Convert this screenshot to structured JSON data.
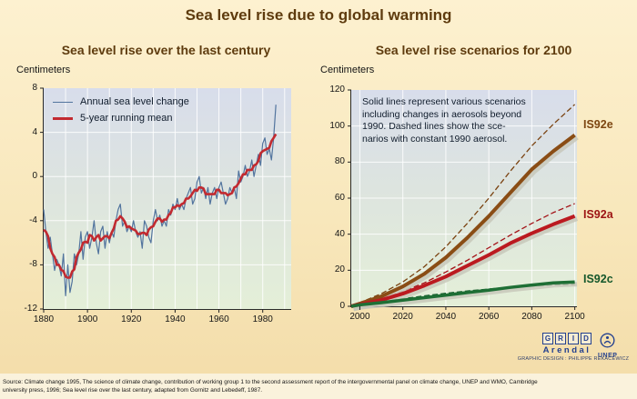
{
  "title": "Sea level rise due to global warming",
  "chart_data": [
    {
      "type": "line",
      "title": "Sea level rise over the last century",
      "unit": "Centimeters",
      "xlim": [
        1880,
        1993
      ],
      "ylim": [
        -12,
        8
      ],
      "x_ticks": [
        1880,
        1900,
        1920,
        1940,
        1960,
        1980
      ],
      "y_ticks": [
        8,
        4,
        0,
        -4,
        -8,
        -12
      ],
      "grid_x": [
        1890,
        1900,
        1910,
        1920,
        1930,
        1940,
        1950,
        1960,
        1970,
        1980,
        1990
      ],
      "grid_y": [
        4,
        0,
        -4,
        -8
      ],
      "legend_position": "top-left",
      "series": [
        {
          "name": "Annual sea level change",
          "color": "#52749E",
          "width": 1.2,
          "x_start": 1880,
          "x_step": 1,
          "values": [
            -3,
            -5,
            -6.5,
            -5.5,
            -7,
            -8.5,
            -7.5,
            -8,
            -9,
            -7,
            -10.8,
            -8,
            -10.5,
            -9.5,
            -7,
            -8,
            -7,
            -5,
            -7.5,
            -5.5,
            -5,
            -6.5,
            -5.5,
            -4,
            -6,
            -7,
            -5,
            -4.5,
            -6.5,
            -5,
            -6,
            -5,
            -5.5,
            -4,
            -3,
            -2.5,
            -4.5,
            -4,
            -5,
            -4.5,
            -5,
            -4,
            -5,
            -5.5,
            -5,
            -6.5,
            -4,
            -4.5,
            -5.5,
            -6,
            -4,
            -3,
            -4,
            -3.5,
            -4.5,
            -4,
            -4.5,
            -3,
            -3.5,
            -2.5,
            -3,
            -2,
            -3,
            -2.5,
            -3,
            -2,
            -1.5,
            -1,
            -2.5,
            -2,
            -0.5,
            0,
            -1.5,
            -1,
            -2,
            -1,
            -2.5,
            -1.5,
            -1,
            -2,
            -1,
            -0.5,
            -1.5,
            -2.5,
            -2,
            -1,
            -1.5,
            -1,
            -2,
            0.5,
            -0.5,
            0,
            1,
            0,
            0.5,
            1.5,
            0,
            1,
            2,
            1,
            3,
            3.5,
            2,
            2.5,
            1.5,
            3.5,
            6.5
          ]
        },
        {
          "name": "5-year running mean",
          "color": "#C22A30",
          "width": 2.6,
          "derived_from": "Annual sea level change",
          "derivation": "5-year centered moving average"
        }
      ]
    },
    {
      "type": "line",
      "title": "Sea level rise scenarios for 2100",
      "unit": "Centimeters",
      "note_lines": [
        "Solid lines represent various scenarios",
        "including changes in aerosols beyond",
        "1990. Dashed lines show the sce-",
        "narios with constant 1990 aerosol."
      ],
      "xlim": [
        1996,
        2101
      ],
      "ylim": [
        0,
        120
      ],
      "x_ticks": [
        2000,
        2020,
        2040,
        2060,
        2080,
        2100
      ],
      "y_ticks": [
        120,
        100,
        80,
        60,
        40,
        20,
        0
      ],
      "grid_x": [
        2000,
        2020,
        2040,
        2060,
        2080,
        2100
      ],
      "grid_y": [
        20,
        40,
        60,
        80,
        100
      ],
      "labels": [
        {
          "text": "IS92e",
          "color": "#7D4611",
          "at_cm": 100
        },
        {
          "text": "IS92a",
          "color": "#9C1313",
          "at_cm": 50
        },
        {
          "text": "IS92c",
          "color": "#14572B",
          "at_cm": 14
        }
      ],
      "series": [
        {
          "name": "IS92e constant 1990 aerosol",
          "style": "dashed",
          "color": "#7A4210",
          "width": 1.3,
          "dash": "6 3",
          "x": [
            1996,
            2000,
            2010,
            2020,
            2030,
            2040,
            2050,
            2060,
            2070,
            2080,
            2090,
            2100
          ],
          "y": [
            0,
            2,
            7,
            13.5,
            22,
            33,
            46,
            60,
            75,
            89,
            101,
            112
          ]
        },
        {
          "name": "IS92a constant 1990 aerosol",
          "style": "dashed",
          "color": "#A31318",
          "width": 1.3,
          "dash": "6 3",
          "x": [
            1996,
            2000,
            2010,
            2020,
            2030,
            2040,
            2050,
            2060,
            2070,
            2080,
            2090,
            2100
          ],
          "y": [
            0,
            1.2,
            4.2,
            8.2,
            13,
            19,
            25.5,
            32.5,
            39.5,
            46,
            52,
            57
          ]
        },
        {
          "name": "IS92c constant 1990 aerosol",
          "style": "dashed",
          "color": "#155C2B",
          "width": 1.3,
          "dash": "6 3",
          "x": [
            1996,
            2000,
            2010,
            2020,
            2030,
            2040,
            2050,
            2060,
            2070,
            2080,
            2090,
            2100
          ],
          "y": [
            0,
            1,
            2.5,
            4.2,
            5.8,
            7.2,
            8.5,
            9.6,
            10.6,
            11.3,
            11.9,
            12.2
          ]
        },
        {
          "name": "IS92e",
          "style": "solid",
          "color": "#8A4D15",
          "width": 4,
          "shadow": true,
          "x": [
            1996,
            2000,
            2010,
            2020,
            2030,
            2040,
            2050,
            2060,
            2070,
            2080,
            2090,
            2100
          ],
          "y": [
            0,
            1.5,
            5.5,
            11,
            18,
            27,
            38,
            50,
            63,
            76,
            86,
            95
          ]
        },
        {
          "name": "IS92a",
          "style": "solid",
          "color": "#BB1A20",
          "width": 4,
          "shadow": true,
          "x": [
            1996,
            2000,
            2010,
            2020,
            2030,
            2040,
            2050,
            2060,
            2070,
            2080,
            2090,
            2100
          ],
          "y": [
            0,
            1,
            3.5,
            7,
            11.5,
            16.5,
            22.5,
            28.5,
            35,
            40.5,
            45.5,
            50
          ]
        },
        {
          "name": "IS92c",
          "style": "solid",
          "color": "#1E6F35",
          "width": 3.5,
          "shadow": true,
          "x": [
            1996,
            2000,
            2010,
            2020,
            2030,
            2040,
            2050,
            2060,
            2070,
            2080,
            2090,
            2100
          ],
          "y": [
            0,
            0.8,
            2,
            3.4,
            4.8,
            6.2,
            7.6,
            9,
            10.5,
            11.8,
            13,
            13.5
          ]
        }
      ]
    }
  ],
  "footer": {
    "source_line1": "Source: Climate change 1995, The science of climate change, contribution of working group 1 to the second assessment report of the intergovernmental panel on climate change, UNEP and WMO, Cambridge",
    "source_line2": "university press,  1996; Sea level rise over the last century, adapted from Gornitz and Lebedeff, 1987.",
    "credit": "GRAPHIC DESIGN : PHILIPPE REKACEWICZ",
    "logos": {
      "grid_letters": [
        "G",
        "R",
        "I",
        "D"
      ],
      "grid_name": "Arendal",
      "unep_name": "UNEP"
    }
  }
}
